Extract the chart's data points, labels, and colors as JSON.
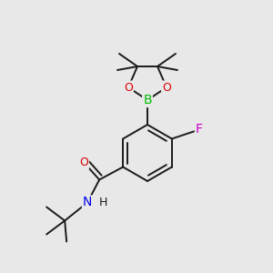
{
  "background_color": "#e8e8e8",
  "atom_colors": {
    "B": "#00bb00",
    "O": "#dd0000",
    "N": "#0000ee",
    "F": "#cc00cc",
    "C": "#000000",
    "H": "#000000"
  },
  "bond_color": "#1a1a1a",
  "bond_width": 1.4,
  "figsize": [
    3.0,
    3.0
  ],
  "dpi": 100
}
